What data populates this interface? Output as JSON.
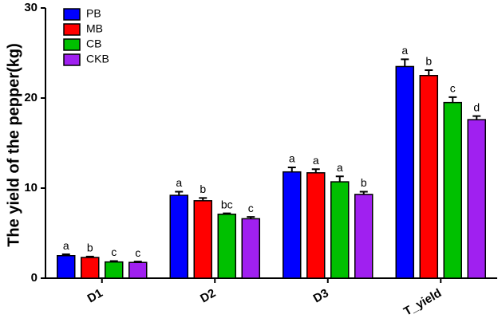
{
  "chart_data": {
    "type": "bar",
    "y_label": "The yield of the pepper(kg)",
    "categories": [
      "D1",
      "D2",
      "D3",
      "T_yield"
    ],
    "ylim": [
      0,
      30
    ],
    "yticks": [
      0,
      10,
      20,
      30
    ],
    "legend": "top-left",
    "series": [
      {
        "name": "PB",
        "color": "#0000ff",
        "values": [
          2.5,
          9.2,
          11.8,
          23.5
        ],
        "errors": [
          0.15,
          0.4,
          0.5,
          0.8
        ],
        "letters": [
          "a",
          "a",
          "a",
          "a"
        ]
      },
      {
        "name": "MB",
        "color": "#ff0000",
        "values": [
          2.3,
          8.6,
          11.7,
          22.5
        ],
        "errors": [
          0.1,
          0.3,
          0.4,
          0.6
        ],
        "letters": [
          "b",
          "b",
          "a",
          "b"
        ]
      },
      {
        "name": "CB",
        "color": "#00c000",
        "values": [
          1.8,
          7.1,
          10.7,
          19.5
        ],
        "errors": [
          0.1,
          0.1,
          0.6,
          0.6
        ],
        "letters": [
          "c",
          "bc",
          "a",
          "c"
        ]
      },
      {
        "name": "CKB",
        "color": "#a020f0",
        "values": [
          1.75,
          6.6,
          9.3,
          17.6
        ],
        "errors": [
          0.1,
          0.2,
          0.3,
          0.4
        ],
        "letters": [
          "c",
          "c",
          "b",
          "d"
        ]
      }
    ]
  }
}
